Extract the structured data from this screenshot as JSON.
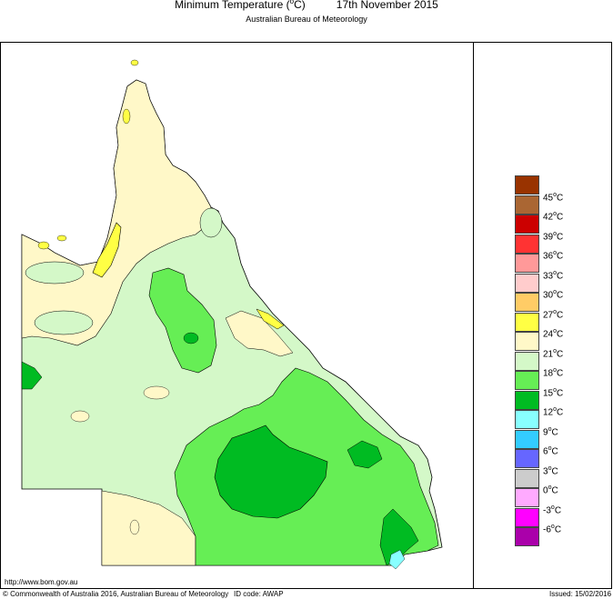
{
  "title": {
    "main_prefix": "Minimum Temperature (",
    "degree": "o",
    "main_suffix": "C)",
    "date": "17th November 2015",
    "agency": "Australian Bureau of Meteorology"
  },
  "map": {
    "region": "Queensland",
    "palette": {
      "21to24": "#fff8c8",
      "18to21": "#d4f8c8",
      "15to18": "#66ee55",
      "12to15": "#00bb22",
      "24to27": "#ffff44",
      "9to12": "#88ffff",
      "outline": "#000000"
    }
  },
  "legend": {
    "items": [
      {
        "label": "45",
        "color": "#993300"
      },
      {
        "label": "42",
        "color": "#aa6633"
      },
      {
        "label": "39",
        "color": "#cc0000"
      },
      {
        "label": "36",
        "color": "#ff3333"
      },
      {
        "label": "33",
        "color": "#ff9999"
      },
      {
        "label": "30",
        "color": "#ffcccc"
      },
      {
        "label": "27",
        "color": "#ffcc66"
      },
      {
        "label": "24",
        "color": "#ffff44"
      },
      {
        "label": "21",
        "color": "#fff8c8"
      },
      {
        "label": "18",
        "color": "#d4f8c8"
      },
      {
        "label": "15",
        "color": "#66ee55"
      },
      {
        "label": "12",
        "color": "#00bb22"
      },
      {
        "label": "9",
        "color": "#88ffff"
      },
      {
        "label": "6",
        "color": "#33ccff"
      },
      {
        "label": "3",
        "color": "#6666ff"
      },
      {
        "label": "0",
        "color": "#cccccc"
      },
      {
        "label": "-3",
        "color": "#ffaaff"
      },
      {
        "label": "-6",
        "color": "#ff00ff"
      },
      {
        "label": "",
        "color": "#aa00aa"
      }
    ],
    "unit_degree": "o",
    "unit": "C"
  },
  "footer": {
    "url": "http://www.bom.gov.au",
    "copyright": "© Commonwealth of Australia 2016, Australian Bureau of Meteorology",
    "id_code": "ID code: AWAP",
    "issued": "Issued: 15/02/2016"
  }
}
